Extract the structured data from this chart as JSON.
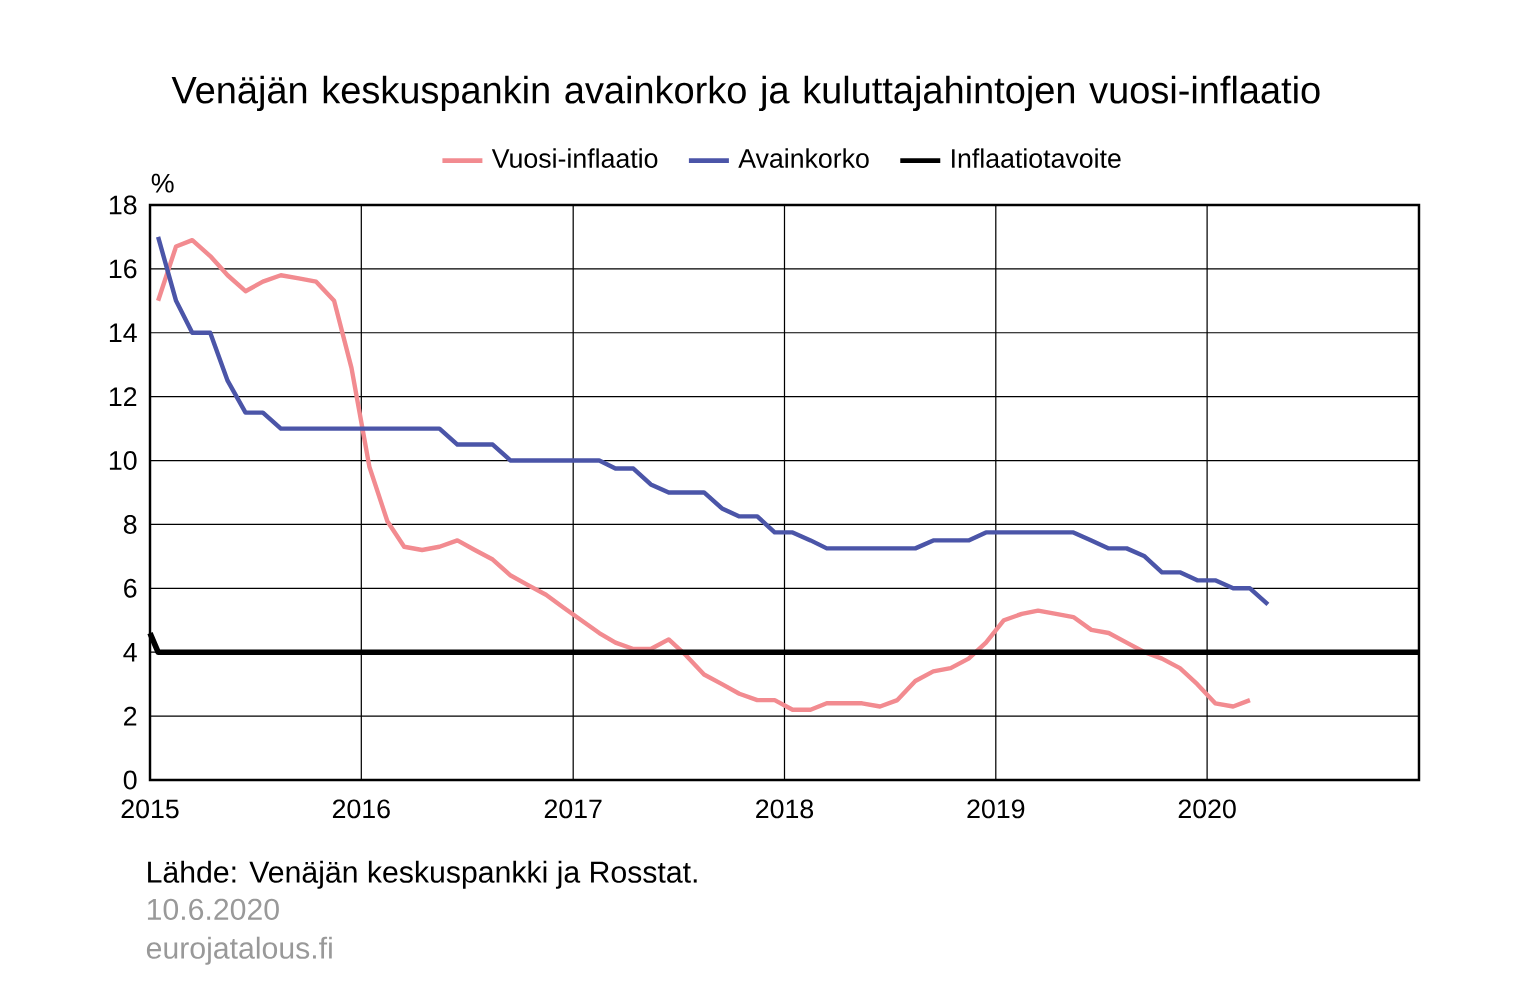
{
  "chart_data": {
    "type": "line",
    "title": "Venäjän keskuspankin avainkorko ja kuluttajahintojen vuosi-inflaatio",
    "ylabel": "%",
    "x": [
      "2015-01-15",
      "2015-02-15",
      "2015-03-15",
      "2015-04-15",
      "2015-05-15",
      "2015-06-15",
      "2015-07-15",
      "2015-08-15",
      "2015-09-15",
      "2015-10-15",
      "2015-11-15",
      "2015-12-15",
      "2016-01-15",
      "2016-02-15",
      "2016-03-15",
      "2016-04-15",
      "2016-05-15",
      "2016-06-15",
      "2016-07-15",
      "2016-08-15",
      "2016-09-15",
      "2016-10-15",
      "2016-11-15",
      "2016-12-15",
      "2017-01-15",
      "2017-02-15",
      "2017-03-15",
      "2017-04-15",
      "2017-05-15",
      "2017-06-15",
      "2017-07-15",
      "2017-08-15",
      "2017-09-15",
      "2017-10-15",
      "2017-11-15",
      "2017-12-15",
      "2018-01-15",
      "2018-02-15",
      "2018-03-15",
      "2018-04-15",
      "2018-05-15",
      "2018-06-15",
      "2018-07-15",
      "2018-08-15",
      "2018-09-15",
      "2018-10-15",
      "2018-11-15",
      "2018-12-15",
      "2019-01-15",
      "2019-02-15",
      "2019-03-15",
      "2019-04-15",
      "2019-05-15",
      "2019-06-15",
      "2019-07-15",
      "2019-08-15",
      "2019-09-15",
      "2019-10-15",
      "2019-11-15",
      "2019-12-15",
      "2020-01-15",
      "2020-02-15",
      "2020-03-15",
      "2020-04-15"
    ],
    "series": [
      {
        "name": "Vuosi-inflaatio",
        "color": "#f28b90",
        "values": [
          15.0,
          16.7,
          16.9,
          16.4,
          15.8,
          15.3,
          15.6,
          15.8,
          15.7,
          15.6,
          15.0,
          12.9,
          9.8,
          8.1,
          7.3,
          7.2,
          7.3,
          7.5,
          7.2,
          6.9,
          6.4,
          6.1,
          5.8,
          5.4,
          5.0,
          4.6,
          4.3,
          4.1,
          4.1,
          4.4,
          3.9,
          3.3,
          3.0,
          2.7,
          2.5,
          2.5,
          2.2,
          2.2,
          2.4,
          2.4,
          2.4,
          2.3,
          2.5,
          3.1,
          3.4,
          3.5,
          3.8,
          4.3,
          5.0,
          5.2,
          5.3,
          5.2,
          5.1,
          4.7,
          4.6,
          4.3,
          4.0,
          3.8,
          3.5,
          3.0,
          2.4,
          2.3,
          2.5,
          null
        ]
      },
      {
        "name": "Avainkorko",
        "color": "#4b55a8",
        "values": [
          17,
          15,
          14,
          14,
          12.5,
          11.5,
          11.5,
          11,
          11,
          11,
          11,
          11,
          11,
          11,
          11,
          11,
          11,
          10.5,
          10.5,
          10.5,
          10,
          10,
          10,
          10,
          10,
          10,
          9.75,
          9.75,
          9.25,
          9,
          9,
          9,
          8.5,
          8.25,
          8.25,
          7.75,
          7.75,
          7.5,
          7.25,
          7.25,
          7.25,
          7.25,
          7.25,
          7.25,
          7.5,
          7.5,
          7.5,
          7.75,
          7.75,
          7.75,
          7.75,
          7.75,
          7.75,
          7.5,
          7.25,
          7.25,
          7,
          6.5,
          6.5,
          6.25,
          6.25,
          6,
          6,
          5.5
        ]
      },
      {
        "name": "Inflaatiotavoite",
        "color": "#000000",
        "x": [
          "2015-01-01",
          "2015-01-15",
          "2021-01-01"
        ],
        "values": [
          4.6,
          4,
          4
        ]
      }
    ],
    "xlim": [
      "2015-01-01",
      "2021-01-01"
    ],
    "xticks": [
      {
        "value": "2015-01-01",
        "label": "2015"
      },
      {
        "value": "2016-01-01",
        "label": "2016"
      },
      {
        "value": "2017-01-01",
        "label": "2017"
      },
      {
        "value": "2018-01-01",
        "label": "2018"
      },
      {
        "value": "2019-01-01",
        "label": "2019"
      },
      {
        "value": "2020-01-01",
        "label": "2020"
      }
    ],
    "ylim": [
      0,
      18
    ],
    "yticks": [
      0,
      2,
      4,
      6,
      8,
      10,
      12,
      14,
      16,
      18
    ],
    "grid": true,
    "legend": "top",
    "annotations": [
      "Lähde: Venäjän keskuspankki ja Rosstat.",
      "10.6.2020",
      "eurojatalous.fi"
    ]
  }
}
